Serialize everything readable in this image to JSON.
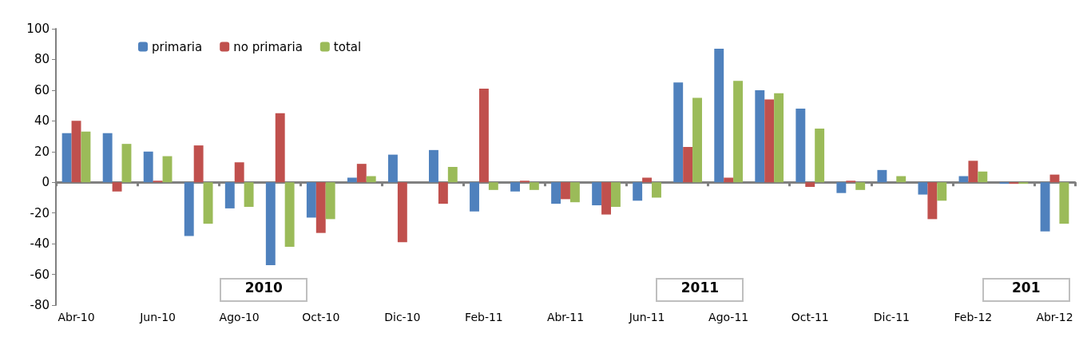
{
  "chart_data": {
    "type": "bar",
    "categories": [
      "Abr-10",
      null,
      "Jun-10",
      null,
      "Ago-10",
      null,
      "Oct-10",
      null,
      "Dic-10",
      null,
      "Feb-11",
      null,
      "Abr-11",
      null,
      "Jun-11",
      null,
      "Ago-11",
      null,
      "Oct-11",
      null,
      "Dic-11",
      null,
      "Feb-12",
      null,
      "Abr-12"
    ],
    "series": [
      {
        "name": "primaria",
        "color": "#4f81bd",
        "values": [
          32,
          32,
          20,
          -35,
          -17,
          -54,
          -23,
          3,
          18,
          21,
          -19,
          -6,
          -14,
          -15,
          -12,
          65,
          87,
          60,
          48,
          -7,
          8,
          -8,
          4,
          -1,
          -32
        ]
      },
      {
        "name": "no primaria",
        "color": "#c0504d",
        "values": [
          40,
          -6,
          1,
          24,
          13,
          45,
          -33,
          12,
          -39,
          -14,
          61,
          1,
          -11,
          -21,
          3,
          23,
          3,
          54,
          -3,
          1,
          0,
          -24,
          14,
          -1,
          5
        ]
      },
      {
        "name": "total",
        "color": "#9bbb59",
        "values": [
          33,
          25,
          17,
          -27,
          -16,
          -42,
          -24,
          4,
          0,
          10,
          -5,
          -5,
          -13,
          -16,
          -10,
          55,
          66,
          58,
          35,
          -5,
          4,
          -12,
          7,
          -1,
          -27
        ]
      }
    ],
    "ylim": [
      -80,
      100
    ],
    "yticks": [
      -80,
      -60,
      -40,
      -20,
      0,
      20,
      40,
      60,
      80,
      100
    ],
    "legend": "top left",
    "annotations": [
      "2010",
      "2011",
      "201"
    ]
  }
}
